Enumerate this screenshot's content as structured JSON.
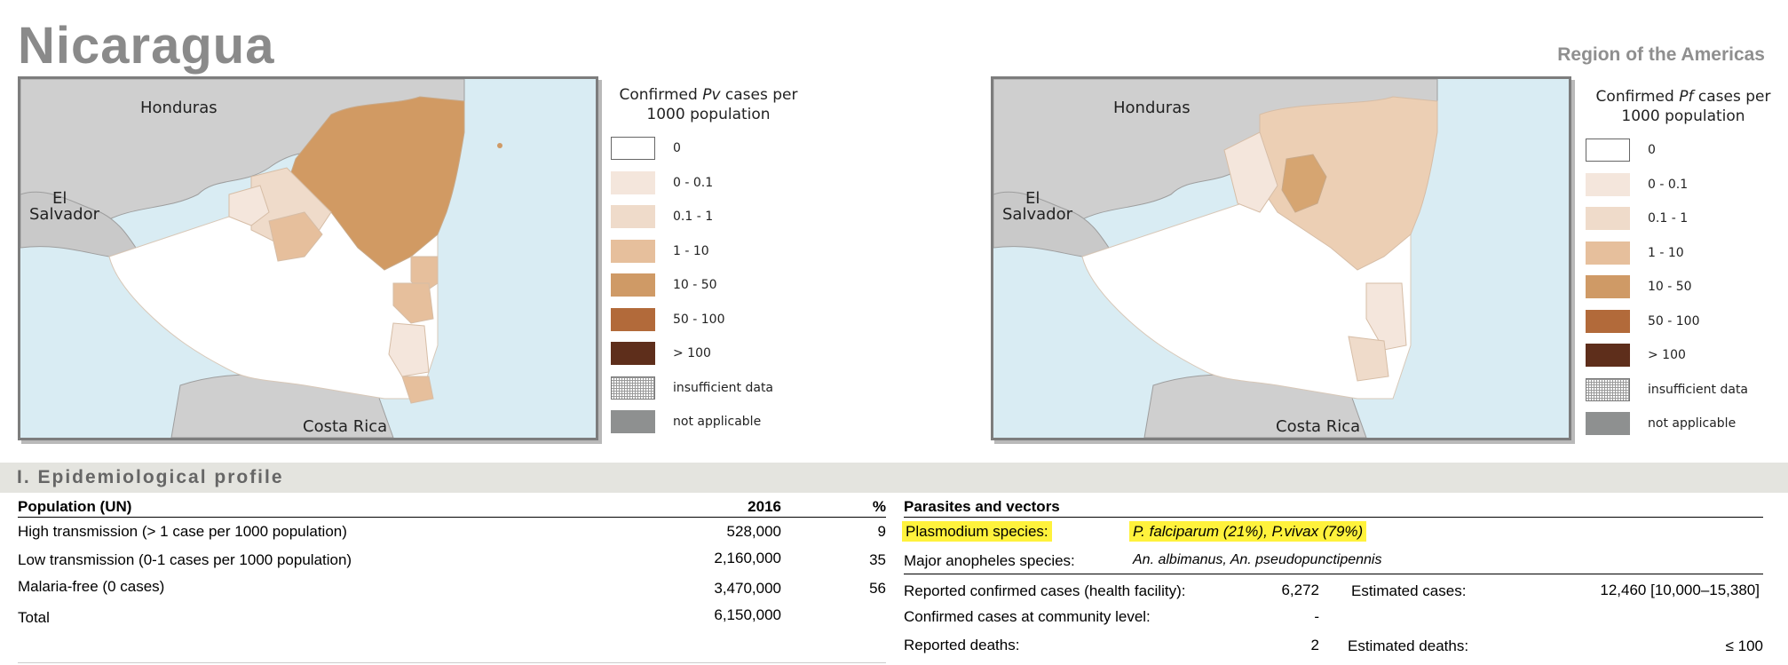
{
  "header": {
    "country": "Nicaragua",
    "region": "Region of the Americas"
  },
  "maps": [
    {
      "labels": {
        "honduras": "Honduras",
        "el_salvador_1": "El",
        "el_salvador_2": "Salvador",
        "costa_rica": "Costa Rica"
      },
      "legend": {
        "title_pre": "Confirmed ",
        "title_species": "Pv",
        "title_post": " cases per",
        "title_line2": "1000 population"
      }
    },
    {
      "labels": {
        "honduras": "Honduras",
        "el_salvador_1": "El",
        "el_salvador_2": "Salvador",
        "costa_rica": "Costa Rica"
      },
      "legend": {
        "title_pre": "Confirmed ",
        "title_species": "Pf",
        "title_post": " cases per",
        "title_line2": "1000 population"
      }
    }
  ],
  "legend_items": [
    {
      "label": "0",
      "color": "#ffffff"
    },
    {
      "label": "0 - 0.1",
      "color": "#f4e6dc"
    },
    {
      "label": "0.1 - 1",
      "color": "#efdbca"
    },
    {
      "label": "1 - 10",
      "color": "#e6bf9c"
    },
    {
      "label": "10 - 50",
      "color": "#cf9a66"
    },
    {
      "label": "50 - 100",
      "color": "#b26a3a"
    },
    {
      "label": "> 100",
      "color": "#5e2e1b"
    },
    {
      "label": "insufficient data",
      "color": "pattern"
    },
    {
      "label": "not applicable",
      "color": "#8e9090"
    }
  ],
  "section": {
    "title": "I. Epidemiological profile"
  },
  "population": {
    "header": {
      "label": "Population (UN)",
      "year": "2016",
      "pct": "%"
    },
    "rows": [
      {
        "label": "High transmission (> 1 case per 1000 population)",
        "value": "528,000",
        "pct": "9"
      },
      {
        "label": "Low transmission (0-1 cases per 1000 population)",
        "value": "2,160,000",
        "pct": "35"
      },
      {
        "label": "Malaria-free (0 cases)",
        "value": "3,470,000",
        "pct": "56"
      },
      {
        "label": "Total",
        "value": "6,150,000",
        "pct": ""
      }
    ]
  },
  "parasites": {
    "header": "Parasites and vectors",
    "plasmodium_label": "Plasmodium species:",
    "plasmodium_value": "P. falciparum (21%), P.vivax (79%)",
    "anopheles_label": "Major anopheles species:",
    "anopheles_value": "An. albimanus, An. pseudopunctipennis",
    "cases": {
      "reported_label": "Reported confirmed cases (health facility):",
      "reported_value": "6,272",
      "estimated_label": "Estimated cases:",
      "estimated_value": "12,460 [10,000–15,380]",
      "community_label": "Confirmed cases at community level:",
      "community_value": "-",
      "deaths_label": "Reported deaths:",
      "deaths_value": "2",
      "est_deaths_label": "Estimated deaths:",
      "est_deaths_value": "≤ 100"
    }
  }
}
